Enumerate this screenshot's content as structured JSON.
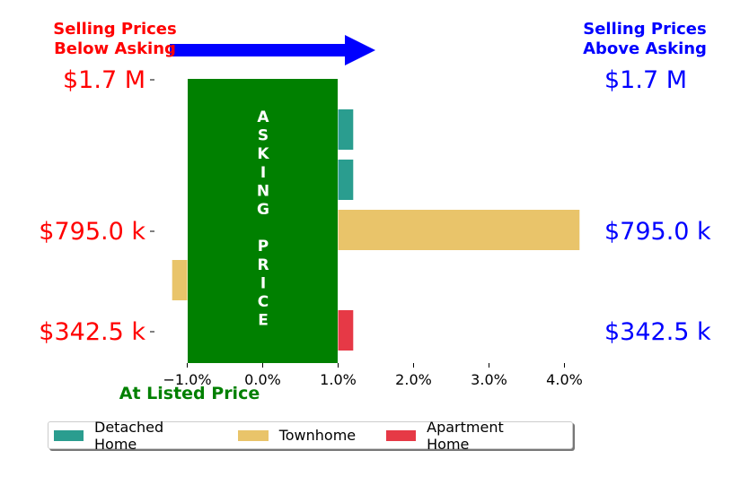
{
  "chart_data": {
    "type": "bar",
    "orientation": "horizontal",
    "corner_labels": {
      "left": [
        "Selling Prices",
        "Below Asking"
      ],
      "right": [
        "Selling Prices",
        "Above Asking"
      ]
    },
    "price_labels": [
      "$1.7 M",
      "$795.0 k",
      "$342.5 k"
    ],
    "price_label_positions": [
      1.7,
      0.795,
      0.3425
    ],
    "asking_band": {
      "text_top": [
        "A",
        "S",
        "K",
        "I",
        "N",
        "G"
      ],
      "text_bottom": [
        "P",
        "R",
        "I",
        "C",
        "E"
      ],
      "x_range": [
        -1.0,
        1.0
      ],
      "color": "#008000"
    },
    "xlabel": "At Listed Price",
    "xticks": [
      -1.0,
      0.0,
      1.0,
      2.0,
      3.0,
      4.0
    ],
    "xtick_labels": [
      "−1.0%",
      "0.0%",
      "1.0%",
      "2.0%",
      "3.0%",
      "4.0%"
    ],
    "xlim": [
      -2.0,
      4.2
    ],
    "bars": [
      {
        "series": "Detached Home",
        "value": 1.2
      },
      {
        "series": "Detached Home",
        "value": 1.2
      },
      {
        "series": "Townhome",
        "value": 4.2
      },
      {
        "series": "Townhome",
        "value": -1.2
      },
      {
        "series": "Apartment Home",
        "value": 1.2
      }
    ],
    "series": [
      {
        "name": "Detached Home",
        "color": "#2a9d8f"
      },
      {
        "name": "Townhome",
        "color": "#e9c46a"
      },
      {
        "name": "Apartment Home",
        "color": "#e63946"
      }
    ],
    "arrow_color": "#0000ff",
    "legend": "bottom"
  }
}
